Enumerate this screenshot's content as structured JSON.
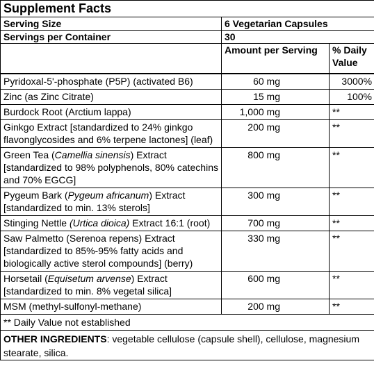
{
  "title": "Supplement Facts",
  "serving": [
    {
      "label": "Serving Size",
      "value": "6 Vegetarian Capsules"
    },
    {
      "label": "Servings per Container",
      "value": "30"
    }
  ],
  "header": {
    "amount": "Amount per Serving",
    "dv": "% Daily Value"
  },
  "rows": [
    {
      "name": [
        "Pyridoxal-5'-phosphate (P5P) (activated B6)"
      ],
      "amount": "60 mg",
      "dv": "3000%"
    },
    {
      "name": [
        "Zinc (as Zinc Citrate)"
      ],
      "amount": "15 mg",
      "dv": "100%"
    },
    {
      "name": [
        "Burdock Root (Arctium lappa)"
      ],
      "amount": "1,000 mg",
      "dv": "**"
    },
    {
      "name": [
        "Ginkgo Extract [standardized to 24% ginkgo flavonglycosides and 6% terpene lactones] (leaf)"
      ],
      "amount": "200 mg",
      "dv": "**"
    },
    {
      "name": [
        "Green Tea (",
        "Camellia sinensis",
        ") Extract [standardized to 98% polyphenols, 80% catechins and 70% EGCG]"
      ],
      "amount": "800 mg",
      "dv": "**"
    },
    {
      "name": [
        "Pygeum Bark (",
        "Pygeum africanum",
        ") Extract [standardized to min. 13% sterols]"
      ],
      "amount": "300 mg",
      "dv": "**"
    },
    {
      "name": [
        "Stinging Nettle ",
        "(Urtica dioica)",
        " Extract 16:1 (root)"
      ],
      "amount": "700 mg",
      "dv": "**"
    },
    {
      "name": [
        "Saw Palmetto (Serenoa repens) Extract [standardized to 85%-95% fatty acids and biologically active sterol compounds] (berry)"
      ],
      "amount": "330 mg",
      "dv": "**"
    },
    {
      "name": [
        "Horsetail (",
        "Equisetum arvense",
        ") Extract [standardized to min. 8% vegetal silica]"
      ],
      "amount": "600 mg",
      "dv": "**"
    },
    {
      "name": [
        "MSM (methyl-sulfonyl-methane)"
      ],
      "amount": "200 mg",
      "dv": "**"
    }
  ],
  "footnote": "** Daily Value not established",
  "other": {
    "label": "OTHER INGREDIENTS",
    "text": ": vegetable cellulose (capsule shell), cellulose, magnesium stearate, silica."
  }
}
